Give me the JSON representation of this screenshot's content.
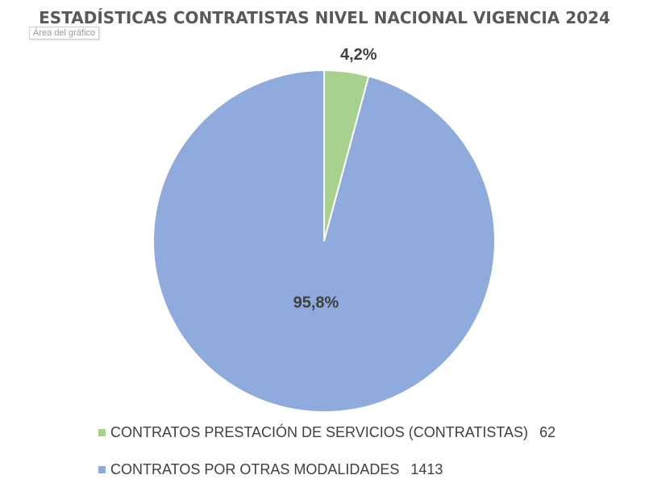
{
  "chart_title": "ESTADÍSTICAS CONTRATISTAS NIVEL NACIONAL VIGENCIA 2024",
  "tooltip": "Área del gráfico",
  "colors": {
    "series_0": "#a9d18e",
    "series_1": "#8faadc",
    "text": "#404040"
  },
  "chart_data": {
    "type": "pie",
    "title": "ESTADÍSTICAS CONTRATISTAS NIVEL NACIONAL VIGENCIA 2024",
    "slices": [
      {
        "label": "CONTRATOS PRESTACIÓN DE SERVICIOS (CONTRATISTAS)",
        "count": "62",
        "value": 62,
        "percent_label": "4,2%",
        "color": "#a9d18e"
      },
      {
        "label": "CONTRATOS POR OTRAS MODALIDADES",
        "count": "1413",
        "value": 1413,
        "percent_label": "95,8%",
        "color": "#8faadc"
      }
    ],
    "legend_position": "bottom"
  }
}
